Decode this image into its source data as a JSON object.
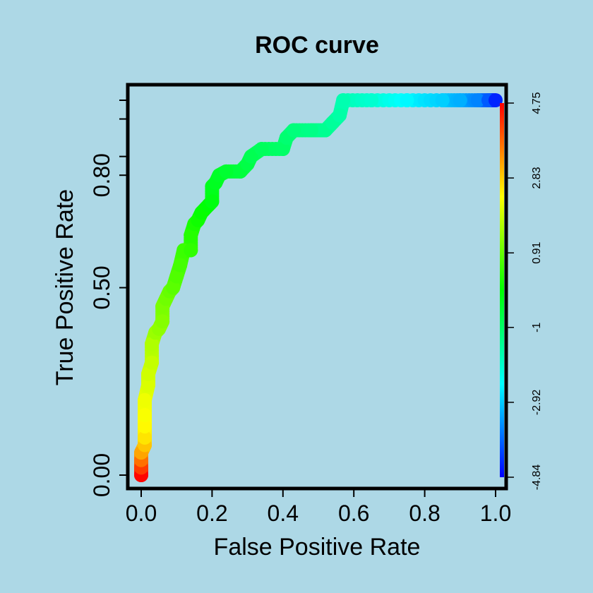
{
  "chart_data": {
    "type": "line",
    "title": "ROC curve",
    "xlabel": "False Positive Rate",
    "ylabel": "True Positive Rate",
    "xlim": [
      0,
      1
    ],
    "ylim": [
      0,
      1
    ],
    "x_ticks": [
      0.0,
      0.2,
      0.4,
      0.6,
      0.8,
      1.0
    ],
    "x_tick_labels": [
      "0.0",
      "0.2",
      "0.4",
      "0.6",
      "0.8",
      "1.0"
    ],
    "y_ticks": [
      0.0,
      0.5,
      0.8
    ],
    "y_tick_labels": [
      "0.00",
      "0.50",
      "0.80"
    ],
    "y_minor_ticks": [
      0.85,
      0.95,
      1.0
    ],
    "grid": false,
    "colorbar": {
      "position": "right",
      "min": -4.84,
      "max": 4.75,
      "tick_values": [
        4.75,
        2.83,
        0.91,
        -1,
        -2.92,
        -4.84
      ],
      "tick_labels": [
        "4.75",
        "2.83",
        "0.91",
        "-1",
        "-2.92",
        "-4.84"
      ],
      "colors_bottom_to_top": [
        "#0000ff",
        "#0080ff",
        "#00ffff",
        "#00ff80",
        "#00ff00",
        "#80ff00",
        "#ffff00",
        "#ff8000",
        "#ff0000"
      ]
    },
    "series": [
      {
        "points": [
          {
            "x": 0.0,
            "y": 0.0,
            "score": 4.7
          },
          {
            "x": 0.0,
            "y": 0.02,
            "score": 4.2
          },
          {
            "x": 0.0,
            "y": 0.04,
            "score": 3.7
          },
          {
            "x": 0.0,
            "y": 0.06,
            "score": 3.2
          },
          {
            "x": 0.01,
            "y": 0.08,
            "score": 2.9
          },
          {
            "x": 0.01,
            "y": 0.1,
            "score": 2.6
          },
          {
            "x": 0.01,
            "y": 0.13,
            "score": 2.4
          },
          {
            "x": 0.01,
            "y": 0.16,
            "score": 2.3
          },
          {
            "x": 0.01,
            "y": 0.2,
            "score": 2.2
          },
          {
            "x": 0.02,
            "y": 0.24,
            "score": 2.0
          },
          {
            "x": 0.02,
            "y": 0.27,
            "score": 1.9
          },
          {
            "x": 0.03,
            "y": 0.3,
            "score": 1.8
          },
          {
            "x": 0.03,
            "y": 0.35,
            "score": 1.6
          },
          {
            "x": 0.04,
            "y": 0.38,
            "score": 1.4
          },
          {
            "x": 0.05,
            "y": 0.39,
            "score": 1.3
          },
          {
            "x": 0.06,
            "y": 0.41,
            "score": 1.2
          },
          {
            "x": 0.06,
            "y": 0.45,
            "score": 1.1
          },
          {
            "x": 0.07,
            "y": 0.47,
            "score": 1.0
          },
          {
            "x": 0.08,
            "y": 0.49,
            "score": 0.9
          },
          {
            "x": 0.09,
            "y": 0.5,
            "score": 0.8
          },
          {
            "x": 0.1,
            "y": 0.53,
            "score": 0.7
          },
          {
            "x": 0.11,
            "y": 0.56,
            "score": 0.6
          },
          {
            "x": 0.12,
            "y": 0.6,
            "score": 0.5
          },
          {
            "x": 0.14,
            "y": 0.6,
            "score": 0.4
          },
          {
            "x": 0.14,
            "y": 0.64,
            "score": 0.3
          },
          {
            "x": 0.15,
            "y": 0.67,
            "score": 0.2
          },
          {
            "x": 0.16,
            "y": 0.68,
            "score": 0.1
          },
          {
            "x": 0.17,
            "y": 0.7,
            "score": 0.0
          },
          {
            "x": 0.19,
            "y": 0.72,
            "score": -0.1
          },
          {
            "x": 0.2,
            "y": 0.73,
            "score": -0.2
          },
          {
            "x": 0.2,
            "y": 0.77,
            "score": -0.3
          },
          {
            "x": 0.21,
            "y": 0.78,
            "score": -0.35
          },
          {
            "x": 0.22,
            "y": 0.8,
            "score": -0.4
          },
          {
            "x": 0.24,
            "y": 0.81,
            "score": -0.5
          },
          {
            "x": 0.28,
            "y": 0.81,
            "score": -0.6
          },
          {
            "x": 0.3,
            "y": 0.83,
            "score": -0.7
          },
          {
            "x": 0.31,
            "y": 0.85,
            "score": -0.8
          },
          {
            "x": 0.34,
            "y": 0.87,
            "score": -0.9
          },
          {
            "x": 0.4,
            "y": 0.87,
            "score": -1.0
          },
          {
            "x": 0.41,
            "y": 0.9,
            "score": -1.1
          },
          {
            "x": 0.43,
            "y": 0.92,
            "score": -1.2
          },
          {
            "x": 0.48,
            "y": 0.92,
            "score": -1.3
          },
          {
            "x": 0.52,
            "y": 0.92,
            "score": -1.4
          },
          {
            "x": 0.54,
            "y": 0.94,
            "score": -1.5
          },
          {
            "x": 0.56,
            "y": 0.96,
            "score": -1.6
          },
          {
            "x": 0.57,
            "y": 1.0,
            "score": -1.7
          },
          {
            "x": 0.65,
            "y": 1.0,
            "score": -2.0
          },
          {
            "x": 0.75,
            "y": 1.0,
            "score": -2.5
          },
          {
            "x": 0.85,
            "y": 1.0,
            "score": -2.9
          },
          {
            "x": 0.9,
            "y": 1.0,
            "score": -3.2
          },
          {
            "x": 0.95,
            "y": 1.0,
            "score": -3.6
          },
          {
            "x": 0.98,
            "y": 1.0,
            "score": -4.0
          },
          {
            "x": 1.0,
            "y": 1.0,
            "score": -4.5
          }
        ]
      }
    ]
  }
}
